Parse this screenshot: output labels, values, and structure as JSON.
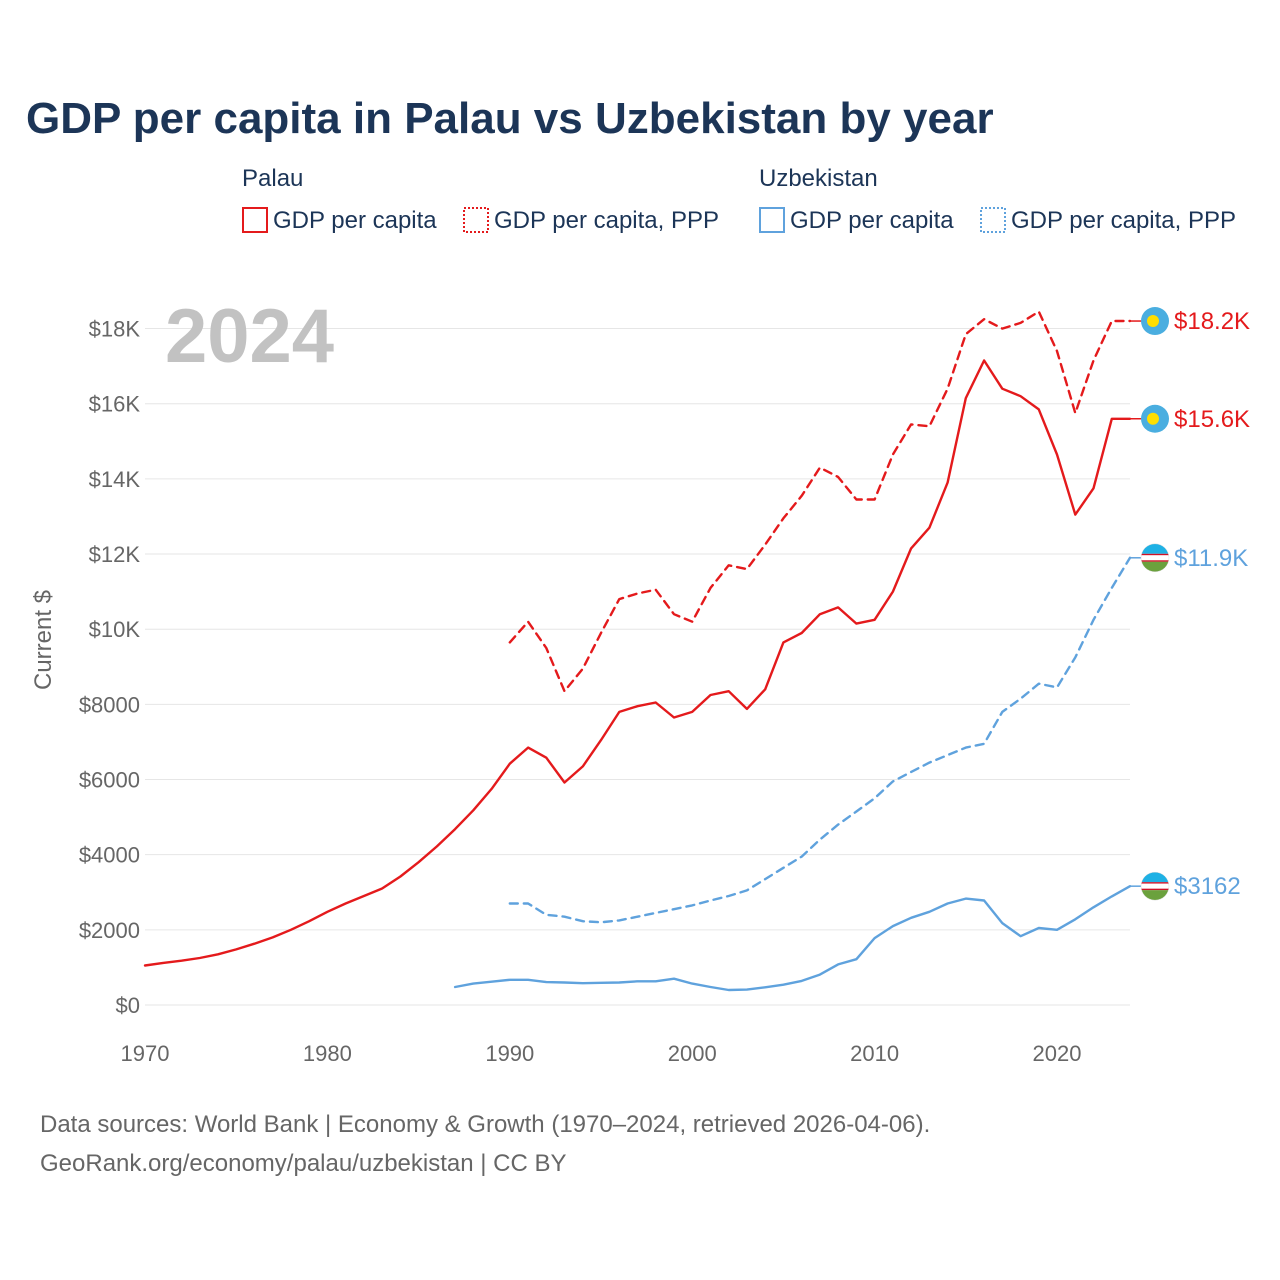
{
  "chart_data": {
    "type": "line",
    "title": "GDP per capita in Palau vs Uzbekistan by year",
    "ylabel": "Current $",
    "xlabel": "",
    "xlim": [
      1970,
      2024
    ],
    "ylim": [
      0,
      19000
    ],
    "x_ticks": [
      1970,
      1980,
      1990,
      2000,
      2010,
      2020
    ],
    "x_tick_labels": [
      "1970",
      "1980",
      "1990",
      "2000",
      "2010",
      "2020"
    ],
    "y_ticks": [
      0,
      2000,
      4000,
      6000,
      8000,
      10000,
      12000,
      14000,
      16000,
      18000
    ],
    "y_tick_labels": [
      "$0",
      "$2000",
      "$4000",
      "$6000",
      "$8000",
      "$10K",
      "$12K",
      "$14K",
      "$16K",
      "$18K"
    ],
    "grid": true,
    "watermark_year": "2024",
    "legend": {
      "groups": [
        {
          "name": "Palau",
          "entries": [
            "GDP per capita",
            "GDP per capita, PPP"
          ],
          "color": "#e41a1c"
        },
        {
          "name": "Uzbekistan",
          "entries": [
            "GDP per capita",
            "GDP per capita, PPP"
          ],
          "color": "#5fa2dd"
        }
      ]
    },
    "series": [
      {
        "name": "Palau GDP per capita PPP",
        "country": "Palau",
        "color": "#e41a1c",
        "dashed": true,
        "end_label": "$18.2K",
        "flag": "palau",
        "x": [
          1990,
          1991,
          1992,
          1993,
          1994,
          1995,
          1996,
          1997,
          1998,
          1999,
          2000,
          2001,
          2002,
          2003,
          2004,
          2005,
          2006,
          2007,
          2008,
          2009,
          2010,
          2011,
          2012,
          2013,
          2014,
          2015,
          2016,
          2017,
          2018,
          2019,
          2020,
          2021,
          2022,
          2023,
          2024
        ],
        "values": [
          9650,
          10200,
          9500,
          8350,
          8950,
          9900,
          10800,
          10950,
          11050,
          10400,
          10200,
          11100,
          11700,
          11600,
          12250,
          12950,
          13550,
          14300,
          14050,
          13450,
          13450,
          14650,
          15450,
          15400,
          16400,
          17850,
          18250,
          18000,
          18150,
          18450,
          17400,
          15750,
          17150,
          18200,
          18200
        ]
      },
      {
        "name": "Palau GDP per capita",
        "country": "Palau",
        "color": "#e41a1c",
        "dashed": false,
        "end_label": "$15.6K",
        "flag": "palau",
        "x": [
          1970,
          1971,
          1972,
          1973,
          1974,
          1975,
          1976,
          1977,
          1978,
          1979,
          1980,
          1981,
          1982,
          1983,
          1984,
          1985,
          1986,
          1987,
          1988,
          1989,
          1990,
          1991,
          1992,
          1993,
          1994,
          1995,
          1996,
          1997,
          1998,
          1999,
          2000,
          2001,
          2002,
          2003,
          2004,
          2005,
          2006,
          2007,
          2008,
          2009,
          2010,
          2011,
          2012,
          2013,
          2014,
          2015,
          2016,
          2017,
          2018,
          2019,
          2020,
          2021,
          2022,
          2023,
          2024
        ],
        "values": [
          1050,
          1120,
          1180,
          1250,
          1350,
          1480,
          1630,
          1800,
          2000,
          2230,
          2480,
          2700,
          2900,
          3100,
          3420,
          3800,
          4220,
          4680,
          5180,
          5750,
          6420,
          6850,
          6580,
          5920,
          6350,
          7050,
          7800,
          7950,
          8050,
          7650,
          7800,
          8250,
          8350,
          7880,
          8400,
          9650,
          9900,
          10400,
          10580,
          10150,
          10250,
          11000,
          12150,
          12700,
          13900,
          16150,
          17150,
          16400,
          16200,
          15850,
          14650,
          13050,
          13750,
          15600,
          15600
        ]
      },
      {
        "name": "Uzbekistan GDP per capita PPP",
        "country": "Uzbekistan",
        "color": "#5fa2dd",
        "dashed": true,
        "end_label": "$11.9K",
        "flag": "uzbekistan",
        "x": [
          1990,
          1991,
          1992,
          1993,
          1994,
          1995,
          1996,
          1997,
          1998,
          1999,
          2000,
          2001,
          2002,
          2003,
          2004,
          2005,
          2006,
          2007,
          2008,
          2009,
          2010,
          2011,
          2012,
          2013,
          2014,
          2015,
          2016,
          2017,
          2018,
          2019,
          2020,
          2021,
          2022,
          2023,
          2024
        ],
        "values": [
          2700,
          2700,
          2400,
          2350,
          2230,
          2200,
          2250,
          2350,
          2450,
          2550,
          2650,
          2780,
          2900,
          3050,
          3350,
          3650,
          3950,
          4400,
          4800,
          5150,
          5500,
          5950,
          6200,
          6450,
          6650,
          6850,
          6950,
          7800,
          8150,
          8550,
          8450,
          9250,
          10250,
          11100,
          11900
        ]
      },
      {
        "name": "Uzbekistan GDP per capita",
        "country": "Uzbekistan",
        "color": "#5fa2dd",
        "dashed": false,
        "end_label": "$3162",
        "flag": "uzbekistan",
        "x": [
          1987,
          1988,
          1989,
          1990,
          1991,
          1992,
          1993,
          1994,
          1995,
          1996,
          1997,
          1998,
          1999,
          2000,
          2001,
          2002,
          2003,
          2004,
          2005,
          2006,
          2007,
          2008,
          2009,
          2010,
          2011,
          2012,
          2013,
          2014,
          2015,
          2016,
          2017,
          2018,
          2019,
          2020,
          2021,
          2022,
          2023,
          2024
        ],
        "values": [
          480,
          570,
          620,
          670,
          670,
          610,
          600,
          580,
          590,
          600,
          630,
          630,
          700,
          570,
          480,
          400,
          410,
          470,
          540,
          640,
          810,
          1080,
          1220,
          1780,
          2100,
          2320,
          2480,
          2700,
          2830,
          2780,
          2180,
          1830,
          2050,
          2000,
          2280,
          2600,
          2890,
          3162
        ]
      }
    ]
  },
  "footer": {
    "source_line": "Data sources: World Bank | Economy & Growth (1970–2024, retrieved 2026-04-06).",
    "url_line": "GeoRank.org/economy/palau/uzbekistan | CC BY"
  }
}
